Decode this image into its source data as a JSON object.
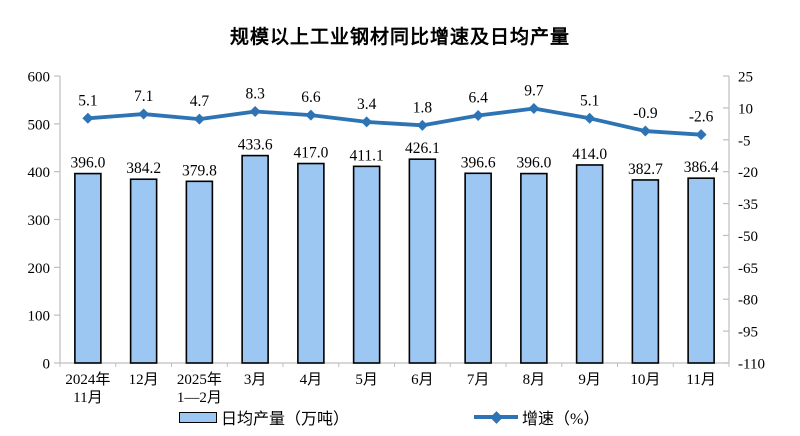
{
  "chart_data": {
    "type": "bar+line",
    "title": "规模以上工业钢材同比增速及日均产量",
    "categories": [
      "2024年\n11月",
      "12月",
      "2025年\n1—2月",
      "3月",
      "4月",
      "5月",
      "6月",
      "7月",
      "8月",
      "9月",
      "10月",
      "11月"
    ],
    "series": [
      {
        "name": "日均产量（万吨）",
        "type": "bar",
        "axis": "left",
        "values": [
          396.0,
          384.2,
          379.8,
          433.6,
          417.0,
          411.1,
          426.1,
          396.6,
          396.0,
          414.0,
          382.7,
          386.4
        ],
        "fill": "#9CC7F2",
        "stroke": "#000000"
      },
      {
        "name": "增速（%）",
        "type": "line",
        "axis": "right",
        "values": [
          5.1,
          7.1,
          4.7,
          8.3,
          6.6,
          3.4,
          1.8,
          6.4,
          9.7,
          5.1,
          -0.9,
          -2.6
        ],
        "color": "#2E74B5",
        "marker": "diamond"
      }
    ],
    "left_axis": {
      "min": 0,
      "max": 600,
      "step": 100,
      "ticks": [
        "0",
        "100",
        "200",
        "300",
        "400",
        "500",
        "600"
      ]
    },
    "right_axis": {
      "min": -110,
      "max": 25,
      "step": 15,
      "ticks": [
        "25",
        "10",
        "-5",
        "-20",
        "-35",
        "-50",
        "-65",
        "-80",
        "-95",
        "-110"
      ]
    },
    "grid": false,
    "axis_color": "#BFBFBF",
    "text_color": "#000000",
    "legend": {
      "position": "bottom",
      "items": [
        {
          "label": "日均产量（万吨）",
          "swatch": "bar"
        },
        {
          "label": "增速（%）",
          "swatch": "line"
        }
      ]
    }
  }
}
